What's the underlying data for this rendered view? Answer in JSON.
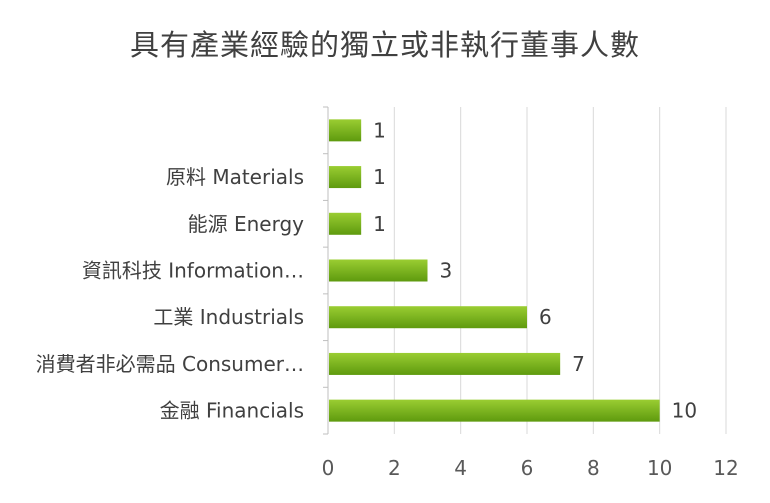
{
  "colors": {
    "bar_top": "#9ACD32",
    "bar_bottom": "#5E9A0E",
    "grid": "#D9D9D9",
    "axis": "#BFBFBF",
    "text": "#404040"
  },
  "chart_data": {
    "type": "bar",
    "orientation": "horizontal",
    "title": "具有產業經驗的獨立或非執行董事人數",
    "categories": [
      "",
      "原料 Materials",
      "能源 Energy",
      "資訊科技 Information…",
      "工業 Industrials",
      "消費者非必需品 Consumer…",
      "金融 Financials"
    ],
    "values": [
      1,
      1,
      1,
      3,
      6,
      7,
      10
    ],
    "xlim": [
      0,
      12
    ],
    "xticks": [
      0,
      2,
      4,
      6,
      8,
      10,
      12
    ],
    "grid": true,
    "legend": "none",
    "data_labels": true
  }
}
